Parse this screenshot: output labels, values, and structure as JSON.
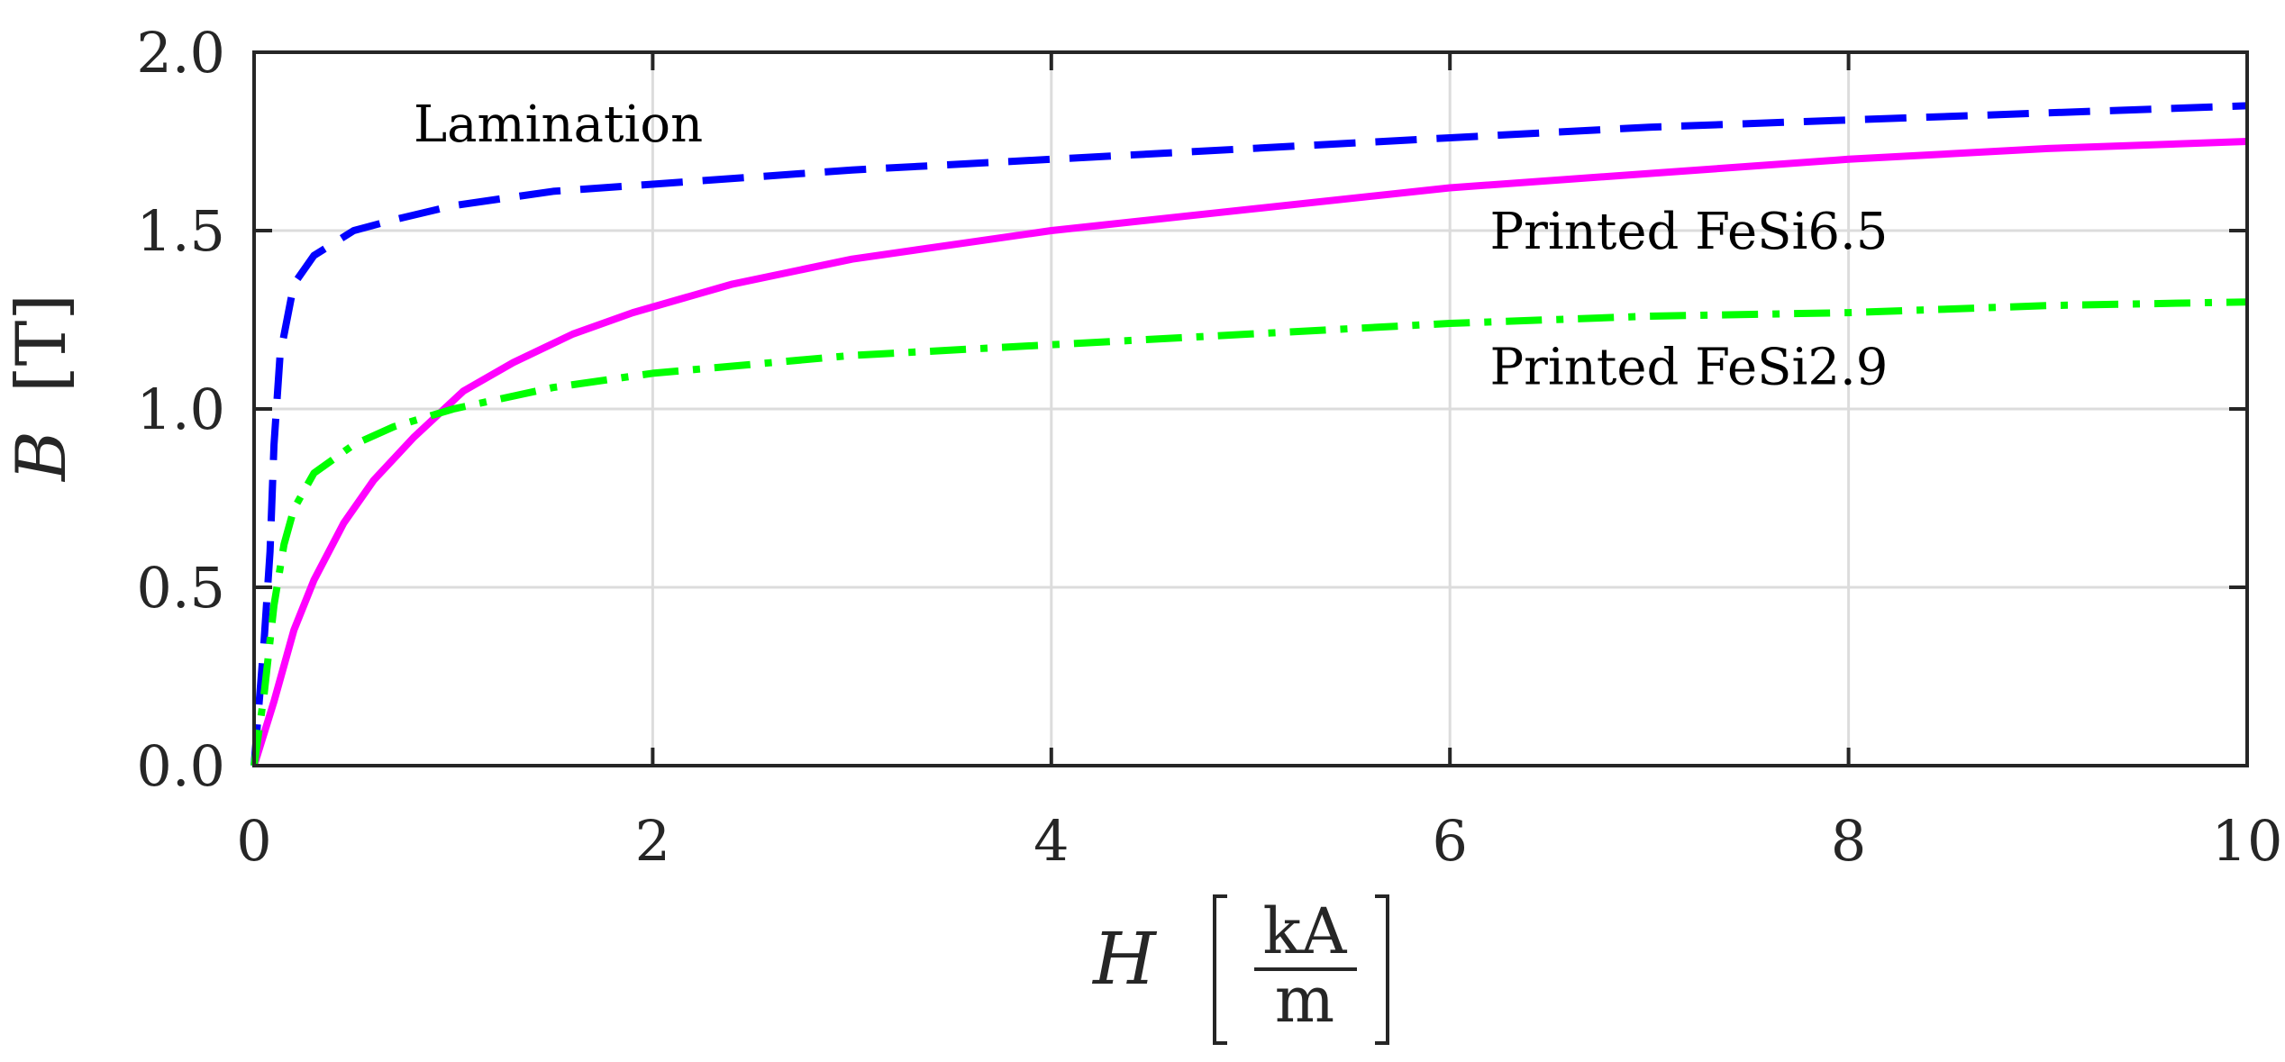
{
  "chart_data": {
    "type": "line",
    "title": "",
    "xlabel": {
      "symbol": "H",
      "unit_numerator": "kA",
      "unit_denominator": "m"
    },
    "ylabel": {
      "symbol": "B",
      "unit": "[T]"
    },
    "xlim": [
      0,
      10
    ],
    "ylim": [
      0,
      2
    ],
    "grid": true,
    "x_ticks": [
      {
        "value": 0,
        "label": "0"
      },
      {
        "value": 2,
        "label": "2"
      },
      {
        "value": 4,
        "label": "4"
      },
      {
        "value": 6,
        "label": "6"
      },
      {
        "value": 8,
        "label": "8"
      },
      {
        "value": 10,
        "label": "10"
      }
    ],
    "y_ticks": [
      {
        "value": 0,
        "label": "0.0"
      },
      {
        "value": 0.5,
        "label": "0.5"
      },
      {
        "value": 1,
        "label": "1.0"
      },
      {
        "value": 1.5,
        "label": "1.5"
      },
      {
        "value": 2,
        "label": "2.0"
      }
    ],
    "series": [
      {
        "name": "Lamination",
        "color": "#0000ff",
        "style": "dashed",
        "x": [
          0,
          0.05,
          0.08,
          0.1,
          0.13,
          0.2,
          0.3,
          0.5,
          0.7,
          1.0,
          1.5,
          2,
          3,
          4,
          5,
          6,
          7,
          8,
          9,
          10
        ],
        "y": [
          0,
          0.35,
          0.6,
          0.9,
          1.15,
          1.35,
          1.43,
          1.5,
          1.53,
          1.57,
          1.61,
          1.63,
          1.67,
          1.7,
          1.73,
          1.76,
          1.79,
          1.81,
          1.83,
          1.85
        ]
      },
      {
        "name": "Printed FeSi6.5",
        "color": "#ff00ff",
        "style": "solid",
        "x": [
          0,
          0.1,
          0.2,
          0.3,
          0.45,
          0.6,
          0.8,
          1.05,
          1.3,
          1.6,
          1.9,
          2.4,
          3,
          3.5,
          4,
          5,
          6,
          7,
          8,
          9,
          10
        ],
        "y": [
          0,
          0.18,
          0.38,
          0.52,
          0.68,
          0.8,
          0.92,
          1.05,
          1.13,
          1.21,
          1.27,
          1.35,
          1.42,
          1.46,
          1.5,
          1.56,
          1.62,
          1.66,
          1.7,
          1.73,
          1.75
        ]
      },
      {
        "name": "Printed FeSi2.9",
        "color": "#00ff00",
        "style": "dashdot",
        "x": [
          0,
          0.05,
          0.1,
          0.15,
          0.2,
          0.3,
          0.5,
          0.7,
          1.0,
          1.5,
          2,
          3,
          4,
          5,
          6,
          7,
          8,
          9,
          10
        ],
        "y": [
          0,
          0.2,
          0.45,
          0.62,
          0.72,
          0.82,
          0.9,
          0.95,
          1.0,
          1.06,
          1.1,
          1.15,
          1.18,
          1.21,
          1.24,
          1.26,
          1.27,
          1.29,
          1.3
        ]
      }
    ],
    "annotations": [
      {
        "text": "Lamination",
        "x": 0.8,
        "y": 1.8
      },
      {
        "text": "Printed FeSi6.5",
        "x": 6.2,
        "y": 1.5
      },
      {
        "text": "Printed FeSi2.9",
        "x": 6.2,
        "y": 1.12
      }
    ]
  }
}
